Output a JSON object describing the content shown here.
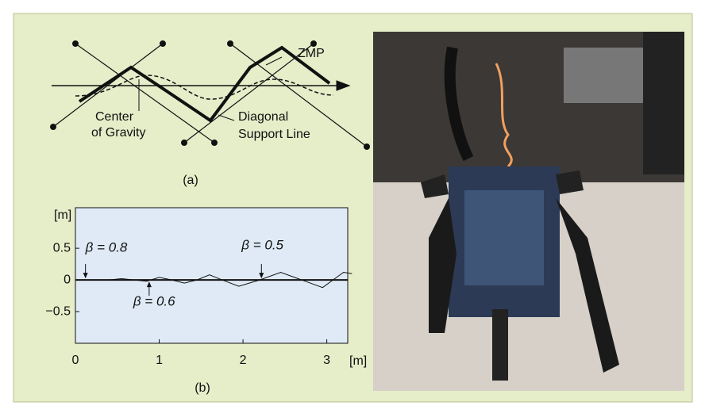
{
  "diagram": {
    "labels": {
      "zmp": "ZMP",
      "center_of_gravity": [
        "Center",
        "of Gravity"
      ],
      "diagonal_support_line": [
        "Diagonal",
        "Support Line"
      ]
    },
    "caption": "(a)"
  },
  "plot": {
    "caption": "(b)",
    "y_unit": "[m]",
    "x_unit": "[m]",
    "xlim": [
      0,
      3.25
    ],
    "ylim": [
      -1.0,
      1.14
    ],
    "xticks": [
      0,
      1,
      2,
      3
    ],
    "yticks": [
      {
        "value": 0.5,
        "label": "0.5"
      },
      0,
      {
        "value": -0.5,
        "label": "−0.5"
      }
    ],
    "x": [
      0,
      0.4,
      0.55,
      0.7,
      0.85,
      1.0,
      1.15,
      1.3,
      1.45,
      1.6,
      1.75,
      1.95,
      2.2,
      2.45,
      2.7,
      2.95,
      3.2,
      3.3
    ],
    "y": [
      0,
      0,
      0.02,
      0,
      -0.02,
      0.04,
      0,
      -0.05,
      0,
      0.08,
      0,
      -0.1,
      0,
      0.12,
      0,
      -0.12,
      0.12,
      0.1
    ],
    "annotations": [
      {
        "text": "β = 0.8",
        "x": 0.12
      },
      {
        "text": "β = 0.6",
        "x": 0.88
      },
      {
        "text": "β = 0.5",
        "x": 2.22
      }
    ]
  }
}
